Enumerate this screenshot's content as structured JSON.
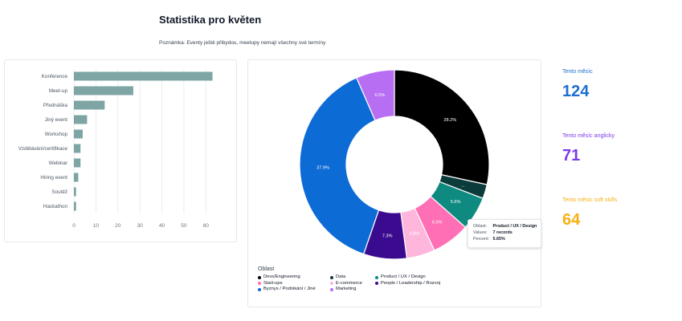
{
  "page": {
    "title": "Statistika pro květen",
    "note": "Poznámka: Eventy ještě přibydou, meetupy nemají všechny své termíny"
  },
  "kpis": [
    {
      "label": "Tento měsíc",
      "value": "124"
    },
    {
      "label": "Tento měsíc anglicky",
      "value": "71"
    },
    {
      "label": "Tento měsíc soft skills",
      "value": "64"
    }
  ],
  "chart_data": [
    {
      "type": "bar",
      "orientation": "horizontal",
      "categories": [
        "Konference",
        "Meet-up",
        "Přednáška",
        "Jiný event",
        "Workshop",
        "Vzdělávání/certifikace",
        "Webinar",
        "Hiring event",
        "Soutěž",
        "Hackathon"
      ],
      "values": [
        63,
        27,
        14,
        6,
        4,
        3,
        3,
        2,
        1,
        1
      ],
      "xlim": [
        0,
        65
      ],
      "ticks": [
        0,
        10,
        20,
        30,
        40,
        50,
        60
      ],
      "grid": true,
      "bar_color": "#7ea5a4"
    },
    {
      "type": "pie",
      "donut": true,
      "legend_title": "Oblast",
      "legend_position": "bottom",
      "slices": [
        {
          "name": "Devs/Engineering",
          "value": 28.2,
          "label": "28.2%",
          "color": "#000000"
        },
        {
          "name": "Data",
          "value": 2.4,
          "label": "...",
          "color": "#0b3b3a"
        },
        {
          "name": "Product / UX / Design",
          "value": 5.65,
          "label": "5.6%",
          "color": "#0e8a80"
        },
        {
          "name": "Start-ups",
          "value": 6.5,
          "label": "6.5%",
          "color": "#ff6fb5"
        },
        {
          "name": "E-commerce",
          "value": 4.8,
          "label": "4.8%",
          "color": "#ffb6dd"
        },
        {
          "name": "People / Leadership / Rozvoj",
          "value": 7.3,
          "label": "7.3%",
          "color": "#3b0b8f"
        },
        {
          "name": "Byznys / Podnikání / Jiné",
          "value": 37.9,
          "label": "37.9%",
          "color": "#0d6bd6"
        },
        {
          "name": "Marketing",
          "value": 6.5,
          "label": "6.5%",
          "color": "#b86ef2"
        }
      ],
      "tooltip": {
        "key_oblast": "Oblast:",
        "oblast": "Product / UX / Design",
        "key_values": "Values:",
        "values": "7 records",
        "key_percent": "Percent:",
        "percent": "5.65%"
      }
    }
  ]
}
